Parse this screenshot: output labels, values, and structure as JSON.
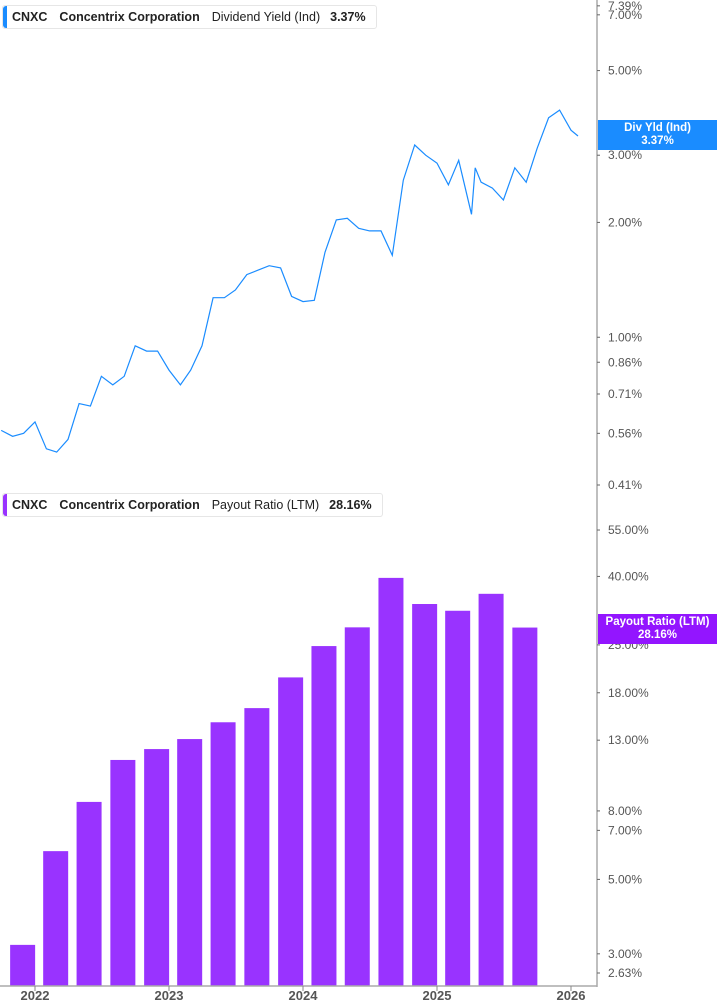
{
  "colors": {
    "yield": "#1a8cff",
    "payout": "#9933ff",
    "axis": "#aaaaaa"
  },
  "top_legend": {
    "ticker": "CNXC",
    "company": "Concentrix Corporation",
    "metric": "Dividend Yield (Ind)",
    "value": "3.37%"
  },
  "top_tag": {
    "label": "Div Yld (Ind)",
    "value": "3.37%"
  },
  "bottom_legend": {
    "ticker": "CNXC",
    "company": "Concentrix Corporation",
    "metric": "Payout Ratio (LTM)",
    "value": "28.16%"
  },
  "bottom_tag": {
    "label": "Payout Ratio (LTM)",
    "value": "28.16%"
  },
  "chart_data": [
    {
      "type": "line",
      "scale": "log",
      "series_name": "Div Yld (Ind)",
      "yticks": [
        "7.39%",
        "7.00%",
        "5.00%",
        "3.00%",
        "2.00%",
        "1.00%",
        "0.86%",
        "0.71%",
        "0.56%",
        "0.41%"
      ],
      "ytick_values": [
        7.39,
        7.0,
        5.0,
        3.0,
        2.0,
        1.0,
        0.86,
        0.71,
        0.56,
        0.41
      ],
      "ylim": [
        0.41,
        7.39
      ],
      "points": [
        [
          "2021-10-01",
          0.57
        ],
        [
          "2021-11-01",
          0.55
        ],
        [
          "2021-12-01",
          0.56
        ],
        [
          "2022-01-01",
          0.6
        ],
        [
          "2022-02-01",
          0.51
        ],
        [
          "2022-03-01",
          0.5
        ],
        [
          "2022-04-01",
          0.54
        ],
        [
          "2022-05-01",
          0.67
        ],
        [
          "2022-06-01",
          0.66
        ],
        [
          "2022-07-01",
          0.79
        ],
        [
          "2022-08-01",
          0.75
        ],
        [
          "2022-09-01",
          0.79
        ],
        [
          "2022-10-01",
          0.95
        ],
        [
          "2022-11-01",
          0.92
        ],
        [
          "2022-12-01",
          0.92
        ],
        [
          "2023-01-01",
          0.82
        ],
        [
          "2023-02-01",
          0.75
        ],
        [
          "2023-03-01",
          0.82
        ],
        [
          "2023-04-01",
          0.95
        ],
        [
          "2023-05-01",
          1.27
        ],
        [
          "2023-06-01",
          1.27
        ],
        [
          "2023-07-01",
          1.33
        ],
        [
          "2023-08-01",
          1.46
        ],
        [
          "2023-09-01",
          1.5
        ],
        [
          "2023-10-01",
          1.54
        ],
        [
          "2023-11-01",
          1.52
        ],
        [
          "2023-12-01",
          1.28
        ],
        [
          "2024-01-01",
          1.24
        ],
        [
          "2024-02-01",
          1.25
        ],
        [
          "2024-03-01",
          1.67
        ],
        [
          "2024-04-01",
          2.03
        ],
        [
          "2024-05-01",
          2.05
        ],
        [
          "2024-06-01",
          1.93
        ],
        [
          "2024-07-01",
          1.9
        ],
        [
          "2024-08-01",
          1.9
        ],
        [
          "2024-09-01",
          1.64
        ],
        [
          "2024-10-01",
          2.58
        ],
        [
          "2024-11-01",
          3.19
        ],
        [
          "2024-12-01",
          3.0
        ],
        [
          "2025-01-01",
          2.86
        ],
        [
          "2025-02-01",
          2.51
        ],
        [
          "2025-03-01",
          2.91
        ],
        [
          "2025-04-05",
          2.1
        ],
        [
          "2025-04-15",
          2.78
        ],
        [
          "2025-05-01",
          2.55
        ],
        [
          "2025-06-01",
          2.46
        ],
        [
          "2025-07-01",
          2.29
        ],
        [
          "2025-08-01",
          2.78
        ],
        [
          "2025-09-01",
          2.55
        ],
        [
          "2025-10-01",
          3.13
        ],
        [
          "2025-11-01",
          3.76
        ],
        [
          "2025-12-01",
          3.94
        ],
        [
          "2026-01-01",
          3.49
        ],
        [
          "2026-01-20",
          3.37
        ]
      ]
    },
    {
      "type": "bar",
      "scale": "log",
      "series_name": "Payout Ratio (LTM)",
      "yticks": [
        "55.00%",
        "40.00%",
        "25.00%",
        "18.00%",
        "13.00%",
        "8.00%",
        "7.00%",
        "5.00%",
        "3.00%",
        "2.63%"
      ],
      "ytick_values": [
        55,
        40,
        25,
        18,
        13,
        8,
        7,
        5,
        3,
        2.63
      ],
      "ylim": [
        2.63,
        55
      ],
      "categories": [
        "2021-12-31",
        "2022-03-31",
        "2022-06-30",
        "2022-09-30",
        "2022-12-31",
        "2023-03-31",
        "2023-06-30",
        "2023-09-30",
        "2023-12-31",
        "2024-03-31",
        "2024-06-30",
        "2024-09-30",
        "2024-12-31",
        "2025-03-31",
        "2025-06-30",
        "2025-09-30"
      ],
      "values": [
        3.19,
        6.07,
        8.51,
        11.35,
        12.23,
        13.1,
        14.7,
        16.2,
        20.0,
        24.8,
        28.2,
        39.6,
        33.1,
        31.6,
        35.5,
        28.16
      ]
    }
  ],
  "x_axis": {
    "ticks": [
      "2022",
      "2023",
      "2024",
      "2025",
      "2026"
    ],
    "tick_dates": [
      "2022-01-01",
      "2023-01-01",
      "2024-01-01",
      "2025-01-01",
      "2026-01-01"
    ]
  }
}
